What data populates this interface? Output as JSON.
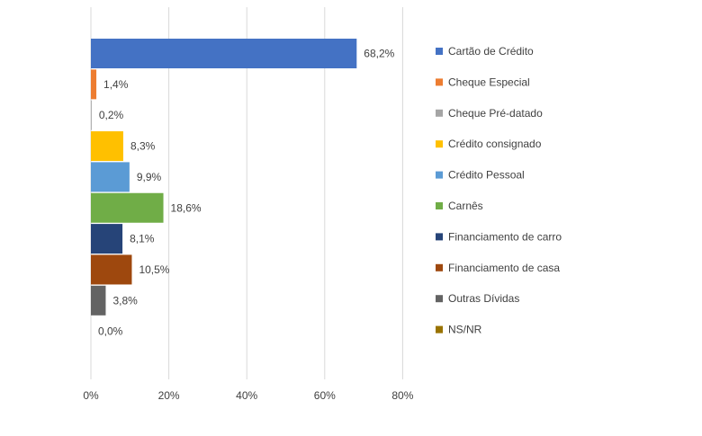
{
  "chart_data": {
    "type": "bar",
    "orientation": "horizontal",
    "grid": true,
    "legend_position": "right",
    "xlim": [
      0,
      80
    ],
    "x_ticks": [
      0,
      20,
      40,
      60,
      80
    ],
    "x_tick_labels": [
      "0%",
      "20%",
      "40%",
      "60%",
      "80%"
    ],
    "categories": [
      "Cartão de Crédito",
      "Cheque Especial",
      "Cheque Pré-datado",
      "Crédito consignado",
      "Crédito Pessoal",
      "Carnês",
      "Financiamento de carro",
      "Financiamento de casa",
      "Outras Dívidas",
      "NS/NR"
    ],
    "values": [
      68.2,
      1.4,
      0.2,
      8.3,
      9.9,
      18.6,
      8.1,
      10.5,
      3.8,
      0.0
    ],
    "value_labels": [
      "68,2%",
      "1,4%",
      "0,2%",
      "8,3%",
      "9,9%",
      "18,6%",
      "8,1%",
      "10,5%",
      "3,8%",
      "0,0%"
    ],
    "colors": [
      "#4472C4",
      "#ED7D31",
      "#A5A5A5",
      "#FFC000",
      "#5B9BD5",
      "#70AD47",
      "#264478",
      "#9E480E",
      "#636363",
      "#997300"
    ]
  }
}
